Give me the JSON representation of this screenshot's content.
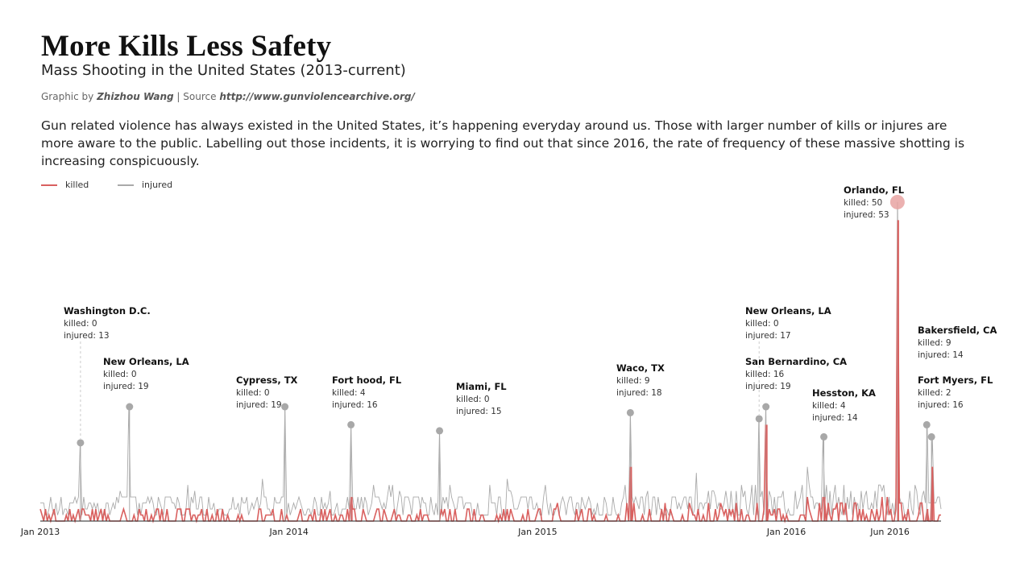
{
  "title": "More Kills Less Safety",
  "subtitle": "Mass Shooting in the United States (2013-current)",
  "credit": {
    "prefix": "Graphic by ",
    "author": "Zhizhou Wang",
    "sep": " | Source ",
    "source": "http://www.gunviolencearchive.org/"
  },
  "description": "Gun related violence has always existed in the United States, it’s happening everyday around us. Those with larger number of kills or injures are more aware to the public. Labelling out those incidents, it is worrying to find out that since 2016, the rate of frequency of these massive shotting is increasing conspicuously.",
  "legend": [
    {
      "label": "killed",
      "color": "#d9605f"
    },
    {
      "label": "injured",
      "color": "#aaaaaa"
    }
  ],
  "chart_data": {
    "type": "line",
    "series": [
      {
        "name": "killed",
        "color": "#d9605f"
      },
      {
        "name": "injured",
        "color": "#aaaaaa"
      }
    ],
    "x_domain": [
      "2013-01-01",
      "2016-08-15"
    ],
    "x_ticks": [
      {
        "date": "2013-01-01",
        "label": "Jan 2013"
      },
      {
        "date": "2014-01-01",
        "label": "Jan 2014"
      },
      {
        "date": "2015-01-01",
        "label": "Jan 2015"
      },
      {
        "date": "2016-01-01",
        "label": "Jan 2016"
      },
      {
        "date": "2016-06-01",
        "label": "Jun 2016"
      }
    ],
    "ylim": [
      0,
      55
    ],
    "grid": false,
    "legend_position": "top-left",
    "annotations": [
      {
        "place": "Washington D.C.",
        "date": "2013-03-01",
        "killed": 0,
        "injured": 13,
        "killed_label": "killed: 0",
        "injured_label": "injured: 13"
      },
      {
        "place": "New Orleans, LA",
        "date": "2013-05-12",
        "killed": 0,
        "injured": 19,
        "killed_label": "killed: 0",
        "injured_label": "injured: 19"
      },
      {
        "place": "Cypress, TX",
        "date": "2013-12-26",
        "killed": 0,
        "injured": 19,
        "killed_label": "killed: 0",
        "injured_label": "injured: 19"
      },
      {
        "place": "Fort hood, FL",
        "date": "2014-04-02",
        "killed": 4,
        "injured": 16,
        "killed_label": "killed: 4",
        "injured_label": "injured: 16"
      },
      {
        "place": "Miami, FL",
        "date": "2014-08-10",
        "killed": 0,
        "injured": 15,
        "killed_label": "killed: 0",
        "injured_label": "injured: 15"
      },
      {
        "place": "Waco, TX",
        "date": "2015-05-17",
        "killed": 9,
        "injured": 18,
        "killed_label": "killed: 9",
        "injured_label": "injured: 18"
      },
      {
        "place": "New Orleans, LA",
        "date": "2015-11-22",
        "killed": 0,
        "injured": 17,
        "killed_label": "killed: 0",
        "injured_label": "injured: 17"
      },
      {
        "place": "San Bernardino, CA",
        "date": "2015-12-02",
        "killed": 16,
        "injured": 19,
        "killed_label": "killed: 16",
        "injured_label": "injured: 19"
      },
      {
        "place": "Hesston, KA",
        "date": "2016-02-25",
        "killed": 4,
        "injured": 14,
        "killed_label": "killed: 4",
        "injured_label": "injured: 14"
      },
      {
        "place": "Orlando, FL",
        "date": "2016-06-12",
        "killed": 50,
        "injured": 53,
        "killed_label": "killed: 50",
        "injured_label": "injured: 53"
      },
      {
        "place": "Fort Myers, FL",
        "date": "2016-07-25",
        "killed": 2,
        "injured": 16,
        "killed_label": "killed: 2",
        "injured_label": "injured: 16"
      },
      {
        "place": "Bakersfield, CA",
        "date": "2016-08-01",
        "killed": 9,
        "injured": 14,
        "killed_label": "killed: 9",
        "injured_label": "injured: 14"
      }
    ]
  }
}
